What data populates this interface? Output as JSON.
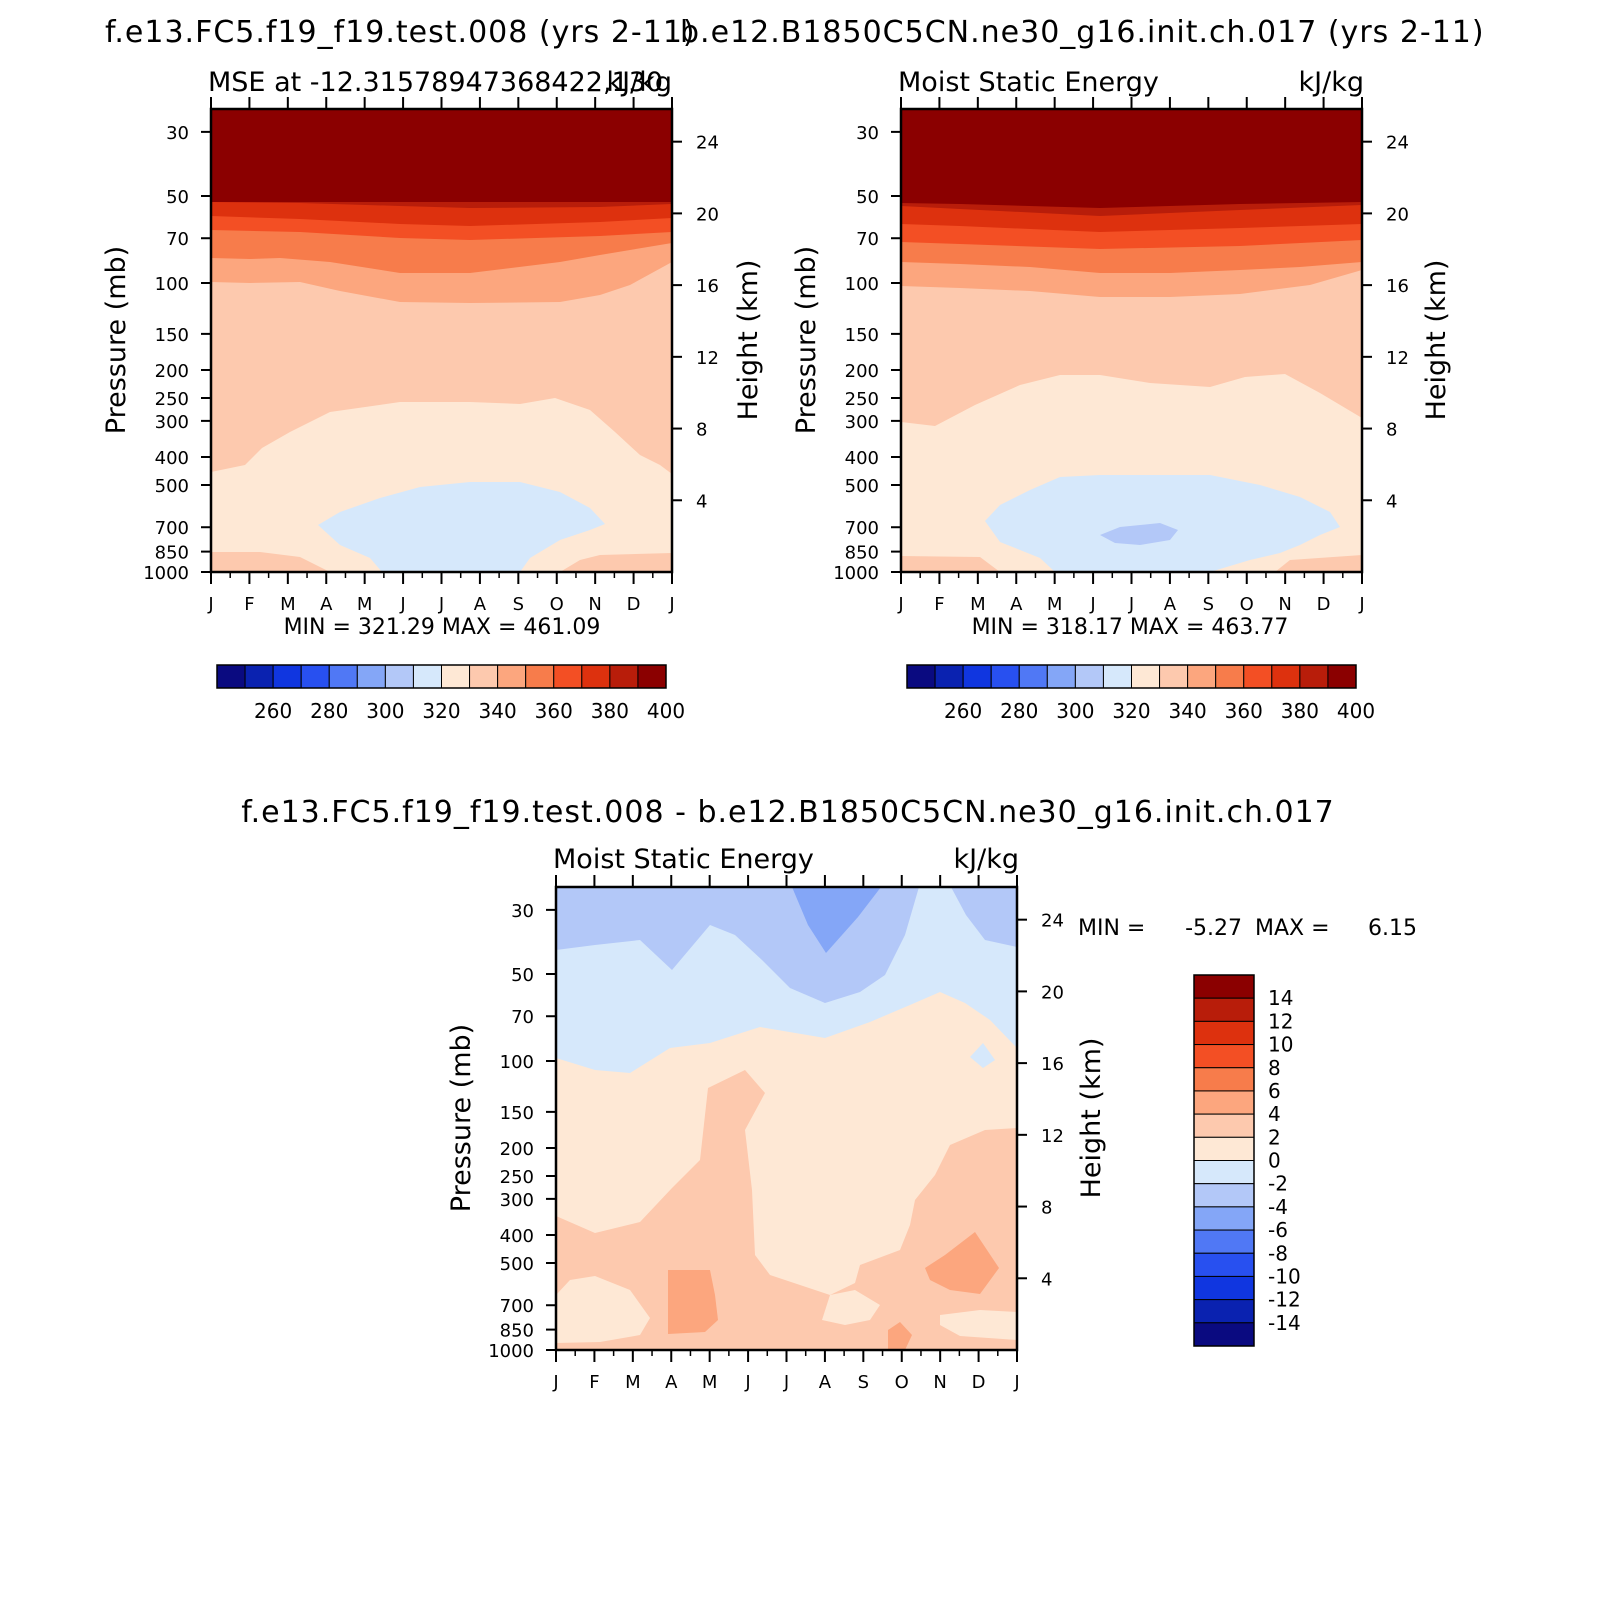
{
  "figure": {
    "panel_a_title": "f.e13.FC5.f19_f19.test.008 (yrs 2-11)",
    "panel_b_title": "b.e12.B1850C5CN.ne30_g16.init.ch.017 (yrs 2-11)",
    "diff_title": "f.e13.FC5.f19_f19.test.008 - b.e12.B1850C5CN.ne30_g16.init.ch.017"
  },
  "chart_data": [
    {
      "type": "heatmap",
      "subtitle_left": "MSE at -12.31578947368422,130",
      "subtitle_right": "kJ/kg",
      "xlabel": "",
      "ylabel": "Pressure (mb)",
      "ylabel_right": "Height (km)",
      "x_ticks": [
        "J",
        "F",
        "M",
        "A",
        "M",
        "J",
        "J",
        "A",
        "S",
        "O",
        "N",
        "D",
        "J"
      ],
      "y_ticks": [
        30,
        50,
        70,
        100,
        150,
        200,
        250,
        300,
        400,
        500,
        700,
        850,
        1000
      ],
      "y_right_ticks": [
        24,
        20,
        16,
        12,
        8,
        4
      ],
      "ylim": [
        1000,
        25
      ],
      "y_scale": "log",
      "min_max_text": "MIN = 321.29 MAX = 461.09",
      "colorbar": {
        "orientation": "horizontal",
        "labels": [
          "260",
          "280",
          "300",
          "320",
          "340",
          "360",
          "380",
          "400"
        ],
        "colors": [
          "#0a0a80",
          "#0a22b0",
          "#1036e0",
          "#2850f0",
          "#5078f5",
          "#84a6f7",
          "#b3c8f8",
          "#d6e8fb",
          "#fee8d5",
          "#fdc9ae",
          "#fca67e",
          "#f77c4b",
          "#f34f24",
          "#dd310e",
          "#b81d0a",
          "#8b0000"
        ]
      }
    },
    {
      "type": "heatmap",
      "subtitle_left": "Moist Static Energy",
      "subtitle_right": "kJ/kg",
      "xlabel": "",
      "ylabel": "Pressure (mb)",
      "ylabel_right": "Height (km)",
      "x_ticks": [
        "J",
        "F",
        "M",
        "A",
        "M",
        "J",
        "J",
        "A",
        "S",
        "O",
        "N",
        "D",
        "J"
      ],
      "y_ticks": [
        30,
        50,
        70,
        100,
        150,
        200,
        250,
        300,
        400,
        500,
        700,
        850,
        1000
      ],
      "y_right_ticks": [
        24,
        20,
        16,
        12,
        8,
        4
      ],
      "ylim": [
        1000,
        25
      ],
      "y_scale": "log",
      "min_max_text": "MIN = 318.17 MAX = 463.77",
      "colorbar": {
        "orientation": "horizontal",
        "labels": [
          "260",
          "280",
          "300",
          "320",
          "340",
          "360",
          "380",
          "400"
        ],
        "colors": [
          "#0a0a80",
          "#0a22b0",
          "#1036e0",
          "#2850f0",
          "#5078f5",
          "#84a6f7",
          "#b3c8f8",
          "#d6e8fb",
          "#fee8d5",
          "#fdc9ae",
          "#fca67e",
          "#f77c4b",
          "#f34f24",
          "#dd310e",
          "#b81d0a",
          "#8b0000"
        ]
      }
    },
    {
      "type": "heatmap",
      "subtitle_left": "Moist Static Energy",
      "subtitle_right": "kJ/kg",
      "xlabel": "",
      "ylabel": "Pressure (mb)",
      "ylabel_right": "Height (km)",
      "x_ticks": [
        "J",
        "F",
        "M",
        "A",
        "M",
        "J",
        "J",
        "A",
        "S",
        "O",
        "N",
        "D",
        "J"
      ],
      "y_ticks": [
        30,
        50,
        70,
        100,
        150,
        200,
        250,
        300,
        400,
        500,
        700,
        850,
        1000
      ],
      "y_right_ticks": [
        24,
        20,
        16,
        12,
        8,
        4
      ],
      "ylim": [
        1000,
        25
      ],
      "y_scale": "log",
      "min_label": "MIN =",
      "min_value": "-5.27",
      "max_label": "MAX =",
      "max_value": "6.15",
      "colorbar": {
        "orientation": "vertical",
        "labels": [
          "14",
          "12",
          "10",
          "8",
          "6",
          "4",
          "2",
          "0",
          "-2",
          "-4",
          "-6",
          "-8",
          "-10",
          "-12",
          "-14"
        ],
        "colors": [
          "#8b0000",
          "#b81d0a",
          "#dd310e",
          "#f34f24",
          "#f77c4b",
          "#fca67e",
          "#fdc9ae",
          "#fee8d5",
          "#d6e8fb",
          "#b3c8f8",
          "#84a6f7",
          "#5078f5",
          "#2850f0",
          "#1036e0",
          "#0a22b0",
          "#0a0a80"
        ]
      }
    }
  ]
}
